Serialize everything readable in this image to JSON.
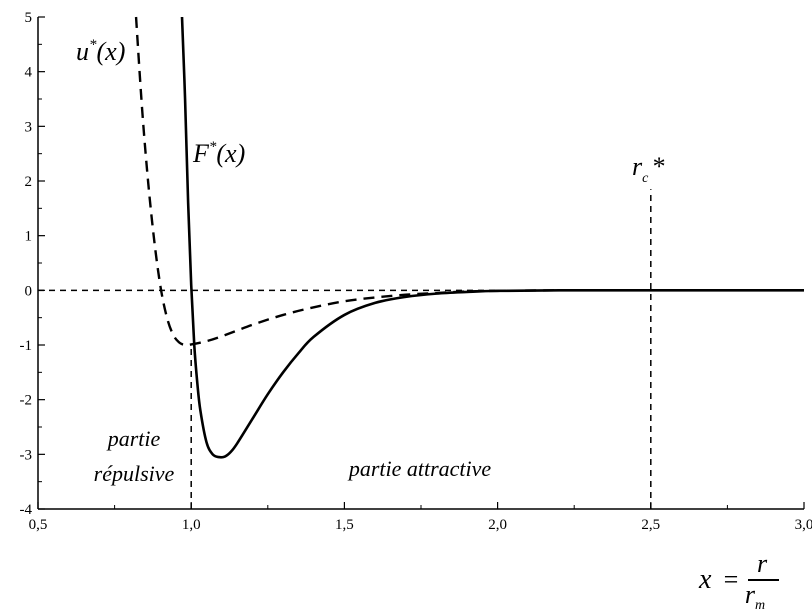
{
  "chart_data": {
    "type": "line",
    "xlim": [
      0.5,
      3.0
    ],
    "ylim": [
      -4,
      5
    ],
    "x_ticks": [
      {
        "value": 0.5,
        "label": "0,5"
      },
      {
        "value": 1.0,
        "label": "1,0"
      },
      {
        "value": 1.5,
        "label": "1,5"
      },
      {
        "value": 2.0,
        "label": "2,0"
      },
      {
        "value": 2.5,
        "label": "2,5"
      },
      {
        "value": 3.0,
        "label": "3,0"
      }
    ],
    "y_ticks": [
      {
        "value": 5,
        "label": "5"
      },
      {
        "value": 4,
        "label": "4"
      },
      {
        "value": 3,
        "label": "3"
      },
      {
        "value": 2,
        "label": "2"
      },
      {
        "value": 1,
        "label": "1"
      },
      {
        "value": 0,
        "label": "0"
      },
      {
        "value": -1,
        "label": "-1"
      },
      {
        "value": -2,
        "label": "-2"
      },
      {
        "value": -3,
        "label": "-3"
      },
      {
        "value": -4,
        "label": "-4"
      }
    ],
    "series": [
      {
        "name": "u*(x)",
        "style": "dashed",
        "x": [
          0.82,
          0.84,
          0.86,
          0.88,
          0.9,
          0.92,
          0.94,
          0.96,
          0.98,
          1.0,
          1.05,
          1.1,
          1.2,
          1.3,
          1.4,
          1.5,
          1.6,
          1.7,
          1.8,
          1.9,
          2.0,
          2.2,
          2.5,
          3.0
        ],
        "y": [
          5.0,
          3.3,
          1.95,
          0.88,
          0.06,
          -0.48,
          -0.8,
          -0.95,
          -1.0,
          -0.99,
          -0.93,
          -0.84,
          -0.63,
          -0.45,
          -0.31,
          -0.2,
          -0.13,
          -0.08,
          -0.05,
          -0.02,
          -0.01,
          0.0,
          0.0,
          0.0
        ]
      },
      {
        "name": "F*(x)",
        "style": "solid",
        "x": [
          0.97,
          0.98,
          0.99,
          1.0,
          1.01,
          1.02,
          1.03,
          1.05,
          1.07,
          1.09,
          1.11,
          1.13,
          1.15,
          1.2,
          1.25,
          1.3,
          1.35,
          1.4,
          1.5,
          1.6,
          1.7,
          1.8,
          1.9,
          2.0,
          2.2,
          2.5,
          3.0
        ],
        "y": [
          5.0,
          3.5,
          1.6,
          0.1,
          -1.0,
          -1.7,
          -2.2,
          -2.78,
          -3.0,
          -3.05,
          -3.04,
          -2.95,
          -2.8,
          -2.35,
          -1.9,
          -1.5,
          -1.15,
          -0.85,
          -0.45,
          -0.23,
          -0.12,
          -0.06,
          -0.03,
          -0.01,
          0.0,
          0.0,
          0.0
        ]
      }
    ],
    "reference_lines": [
      {
        "name": "zero-line",
        "orientation": "horizontal",
        "value": 0,
        "from": 0.5,
        "to": 3.0
      },
      {
        "name": "x-one-line",
        "orientation": "vertical",
        "value": 1.0,
        "from": -4,
        "to": -1.0
      },
      {
        "name": "rc-line",
        "orientation": "vertical",
        "value": 2.5,
        "from": -4,
        "to": 1.85
      }
    ]
  },
  "annotations": {
    "u_label": "u",
    "u_sup": "*",
    "u_arg": "(x)",
    "f_label": "F",
    "f_sup": "*",
    "f_arg": "(x)",
    "rc_label": "r",
    "rc_sub": "c",
    "rc_star": "*",
    "repulsive_line1": "partie",
    "repulsive_line2": "répulsive",
    "attractive": "partie attractive",
    "x_formula_var": "x",
    "x_formula_eq": "=",
    "x_formula_num": "r",
    "x_formula_den": "r",
    "x_formula_den_sub": "m"
  }
}
